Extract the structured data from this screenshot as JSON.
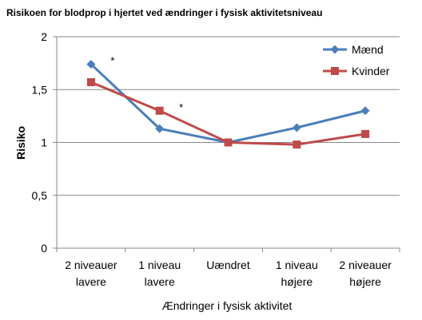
{
  "chart_data": {
    "type": "line",
    "title": "Risikoen for blodprop i hjertet ved ændringer i fysisk aktivitetsniveau",
    "xlabel": "Ændringer i fysisk aktivitet",
    "ylabel": "Risiko",
    "categories": [
      [
        "2 niveauer",
        "lavere"
      ],
      [
        "1 niveau",
        "lavere"
      ],
      [
        "Uændret"
      ],
      [
        "1 niveau",
        "højere"
      ],
      [
        "2 niveauer",
        "højere"
      ]
    ],
    "ylim": [
      0,
      2
    ],
    "yticks": [
      "0",
      "0,5",
      "1",
      "1,5",
      "2"
    ],
    "ytick_values": [
      0,
      0.5,
      1,
      1.5,
      2
    ],
    "grid": true,
    "legend_position": "top-right",
    "series": [
      {
        "name": "Mænd",
        "color": "#4a7ebb",
        "marker": "diamond",
        "values": [
          1.74,
          1.13,
          1.0,
          1.14,
          1.3
        ]
      },
      {
        "name": "Kvinder",
        "color": "#be4b48",
        "marker": "square",
        "values": [
          1.57,
          1.3,
          1.0,
          0.98,
          1.08
        ]
      }
    ],
    "annotations": [
      {
        "text": "*",
        "category_index": 0,
        "value": 1.8
      },
      {
        "text": "*",
        "category_index": 1,
        "value": 1.36
      }
    ]
  }
}
